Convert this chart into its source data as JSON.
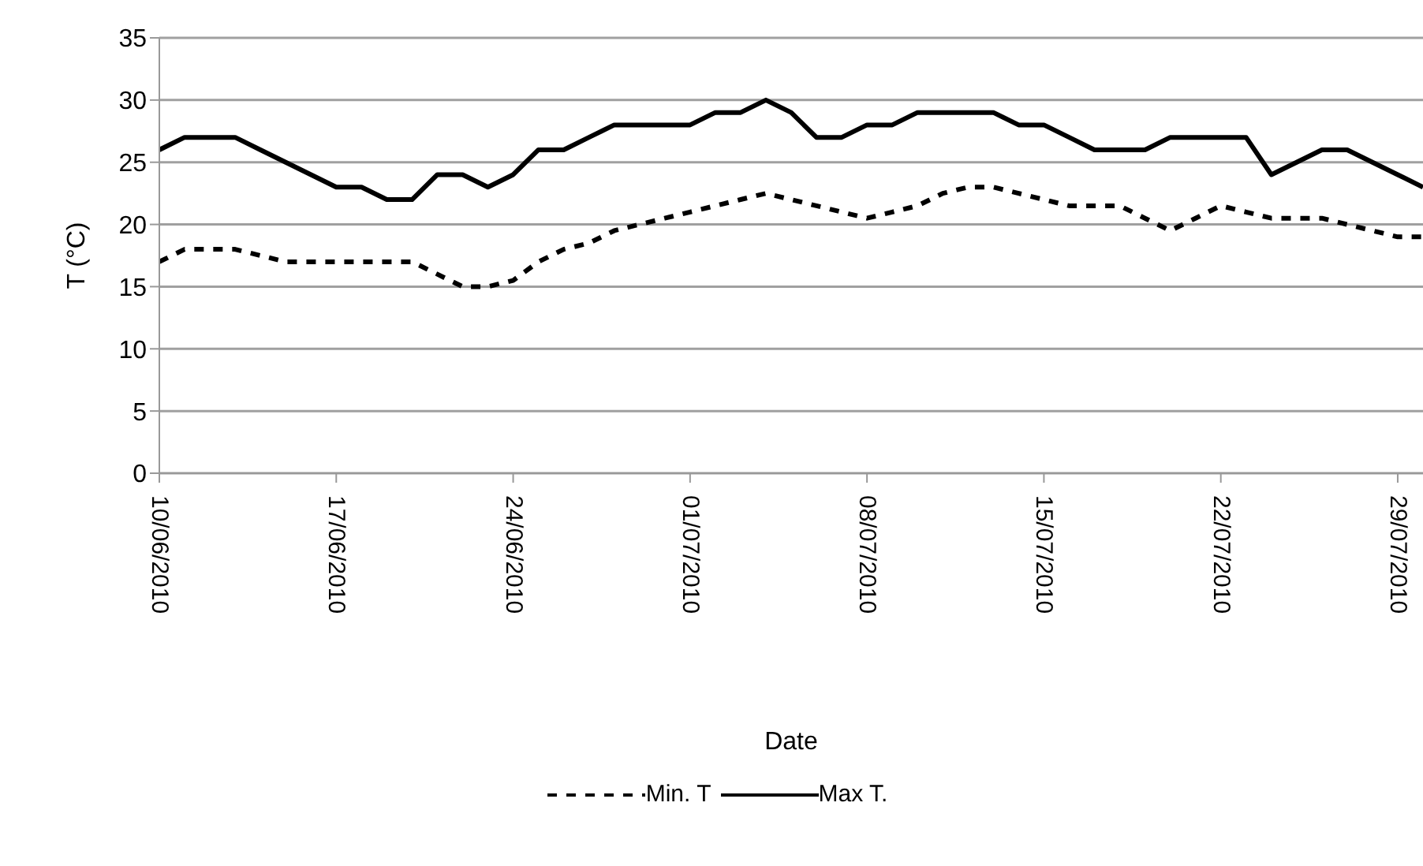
{
  "chart_data": {
    "type": "line",
    "xlabel": "Date",
    "ylabel": "T (°C)",
    "x": [
      "2010-06-10",
      "2010-06-11",
      "2010-06-12",
      "2010-06-13",
      "2010-06-14",
      "2010-06-15",
      "2010-06-16",
      "2010-06-17",
      "2010-06-18",
      "2010-06-19",
      "2010-06-20",
      "2010-06-21",
      "2010-06-22",
      "2010-06-23",
      "2010-06-24",
      "2010-06-25",
      "2010-06-26",
      "2010-06-27",
      "2010-06-28",
      "2010-06-29",
      "2010-06-30",
      "2010-07-01",
      "2010-07-02",
      "2010-07-03",
      "2010-07-04",
      "2010-07-05",
      "2010-07-06",
      "2010-07-07",
      "2010-07-08",
      "2010-07-09",
      "2010-07-10",
      "2010-07-11",
      "2010-07-12",
      "2010-07-13",
      "2010-07-14",
      "2010-07-15",
      "2010-07-16",
      "2010-07-17",
      "2010-07-18",
      "2010-07-19",
      "2010-07-20",
      "2010-07-21",
      "2010-07-22",
      "2010-07-23",
      "2010-07-24",
      "2010-07-25",
      "2010-07-26",
      "2010-07-27",
      "2010-07-28",
      "2010-07-29",
      "2010-07-30"
    ],
    "series": [
      {
        "name": "Min. T",
        "color": "#000000",
        "line_style": "dashed",
        "values": [
          17,
          18,
          18,
          18,
          17.5,
          17,
          17,
          17,
          17,
          17,
          17,
          16,
          15,
          15,
          15.5,
          17,
          18,
          18.5,
          19.5,
          20,
          20.5,
          21,
          21.5,
          22,
          22.5,
          22,
          21.5,
          21,
          20.5,
          21,
          21.5,
          22.5,
          23,
          23,
          22.5,
          22,
          21.5,
          21.5,
          21.5,
          20.5,
          19.5,
          20.5,
          21.5,
          21,
          20.5,
          20.5,
          20.5,
          20,
          19.5,
          19,
          19
        ]
      },
      {
        "name": "Max T.",
        "color": "#000000",
        "line_style": "solid",
        "values": [
          26,
          27,
          27,
          27,
          26,
          25,
          24,
          23,
          23,
          22,
          22,
          24,
          24,
          23,
          24,
          26,
          26,
          27,
          28,
          28,
          28,
          28,
          29,
          29,
          30,
          29,
          27,
          27,
          28,
          28,
          29,
          29,
          29,
          29,
          28,
          28,
          27,
          26,
          26,
          26,
          27,
          27,
          27,
          27,
          24,
          25,
          26,
          26,
          25,
          24,
          23
        ]
      }
    ],
    "xlim": [
      "2010-06-10",
      "2010-07-30"
    ],
    "xticks": [
      {
        "value": "2010-06-10",
        "label": "10/06/2010"
      },
      {
        "value": "2010-06-17",
        "label": "17/06/2010"
      },
      {
        "value": "2010-06-24",
        "label": "24/06/2010"
      },
      {
        "value": "2010-07-01",
        "label": "01/07/2010"
      },
      {
        "value": "2010-07-08",
        "label": "08/07/2010"
      },
      {
        "value": "2010-07-15",
        "label": "15/07/2010"
      },
      {
        "value": "2010-07-22",
        "label": "22/07/2010"
      },
      {
        "value": "2010-07-29",
        "label": "29/07/2010"
      }
    ],
    "ylim": [
      0,
      35
    ],
    "yticks": [
      0,
      5,
      10,
      15,
      20,
      25,
      30,
      35
    ],
    "grid": "y",
    "legend": "bottom",
    "marker": "none"
  }
}
